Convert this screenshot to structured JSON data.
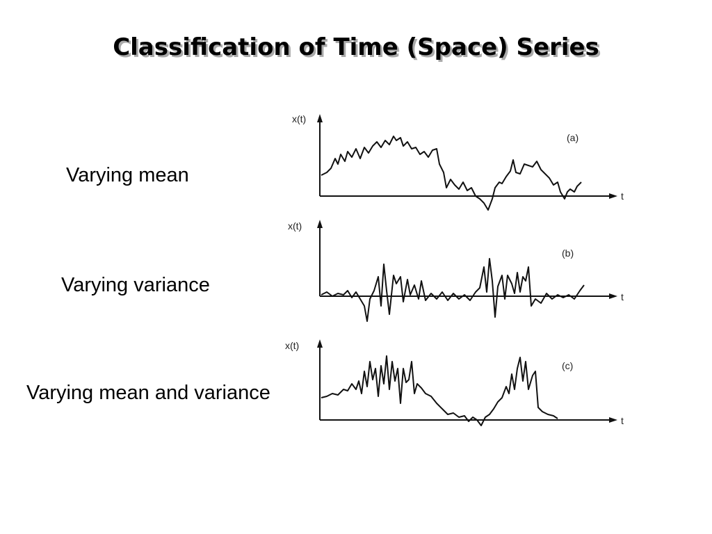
{
  "title": "Classification of Time (Space) Series",
  "rows": [
    {
      "label": "Varying mean",
      "y_label": "x(t)",
      "x_label": "t",
      "panel": "(a)"
    },
    {
      "label": "Varying variance",
      "y_label": "x(t)",
      "x_label": "t",
      "panel": "(b)"
    },
    {
      "label": "Varying mean and variance",
      "y_label": "x(t)",
      "x_label": "t",
      "panel": "(c)"
    }
  ]
}
